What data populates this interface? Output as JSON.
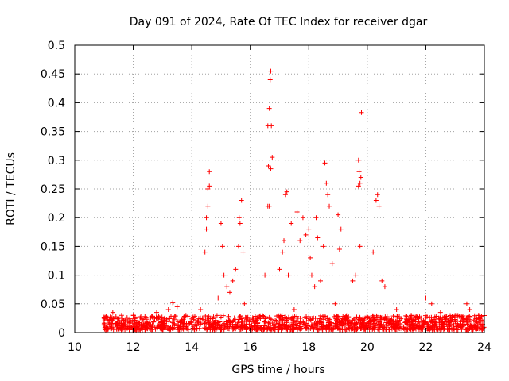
{
  "chart_data": {
    "type": "scatter",
    "title": "Day 091 of 2024, Rate Of TEC Index for receiver dgar",
    "xlabel": "GPS time / hours",
    "ylabel": "ROTI / TECUs",
    "xlim": [
      10,
      24
    ],
    "ylim": [
      0,
      0.5
    ],
    "x_ticks": [
      "10",
      "12",
      "14",
      "16",
      "18",
      "20",
      "22",
      "24"
    ],
    "y_ticks": [
      "0",
      "0.05",
      "0.1",
      "0.15",
      "0.2",
      "0.25",
      "0.3",
      "0.35",
      "0.4",
      "0.45",
      "0.5"
    ],
    "grid": true,
    "marker": "plus",
    "color": "#ff0000",
    "background_level_tecu": [
      0.005,
      0.03
    ],
    "x": [
      11.0,
      11.3,
      11.6,
      12.0,
      12.4,
      12.8,
      13.2,
      13.35,
      13.5,
      13.8,
      14.3,
      14.45,
      14.5,
      14.5,
      14.55,
      14.55,
      14.6,
      14.6,
      14.9,
      15.0,
      15.05,
      15.1,
      15.2,
      15.3,
      15.4,
      15.5,
      15.6,
      15.62,
      15.65,
      15.7,
      15.75,
      15.8,
      16.1,
      16.5,
      16.6,
      16.62,
      16.65,
      16.68,
      16.7,
      16.72,
      16.75,
      16.6,
      16.65,
      16.7,
      17.0,
      17.1,
      17.15,
      17.2,
      17.25,
      17.3,
      17.4,
      17.5,
      17.6,
      17.7,
      17.8,
      17.9,
      18.0,
      18.05,
      18.1,
      18.2,
      18.25,
      18.3,
      18.4,
      18.5,
      18.55,
      18.6,
      18.65,
      18.7,
      18.8,
      18.9,
      19.0,
      19.05,
      19.1,
      19.5,
      19.6,
      19.7,
      19.72,
      19.75,
      19.78,
      19.8,
      19.7,
      19.75,
      20.2,
      20.3,
      20.35,
      20.4,
      20.5,
      20.6,
      21.0,
      21.5,
      22.0,
      22.2,
      22.5,
      23.0,
      23.4,
      23.5,
      23.8,
      24.0
    ],
    "y": [
      0.025,
      0.035,
      0.03,
      0.03,
      0.028,
      0.035,
      0.04,
      0.052,
      0.045,
      0.03,
      0.04,
      0.14,
      0.18,
      0.2,
      0.22,
      0.25,
      0.28,
      0.255,
      0.06,
      0.19,
      0.15,
      0.1,
      0.08,
      0.07,
      0.09,
      0.11,
      0.15,
      0.2,
      0.19,
      0.23,
      0.14,
      0.05,
      0.02,
      0.1,
      0.22,
      0.29,
      0.39,
      0.44,
      0.455,
      0.36,
      0.305,
      0.36,
      0.22,
      0.285,
      0.11,
      0.14,
      0.16,
      0.24,
      0.245,
      0.1,
      0.19,
      0.04,
      0.21,
      0.16,
      0.2,
      0.17,
      0.18,
      0.13,
      0.1,
      0.08,
      0.2,
      0.165,
      0.09,
      0.15,
      0.295,
      0.26,
      0.24,
      0.22,
      0.12,
      0.05,
      0.205,
      0.145,
      0.18,
      0.09,
      0.1,
      0.3,
      0.28,
      0.26,
      0.27,
      0.383,
      0.255,
      0.15,
      0.14,
      0.23,
      0.24,
      0.22,
      0.09,
      0.08,
      0.04,
      0.03,
      0.06,
      0.05,
      0.035,
      0.03,
      0.05,
      0.04,
      0.03,
      0.02
    ]
  }
}
